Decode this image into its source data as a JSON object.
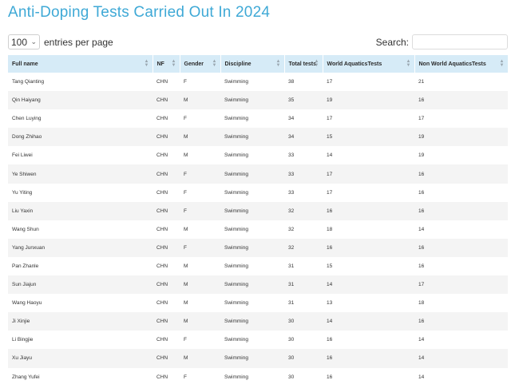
{
  "title": "Anti-Doping Tests Carried Out In 2024",
  "controls": {
    "page_size": "100",
    "page_size_label": "entries per page",
    "search_label": "Search:",
    "search_value": ""
  },
  "columns": [
    "Full name",
    "NF",
    "Gender",
    "Discipline",
    "Total tests",
    "World AquaticsTests",
    "Non World AquaticsTests"
  ],
  "rows": [
    [
      "Tang Qianting",
      "CHN",
      "F",
      "Swimming",
      "38",
      "17",
      "21"
    ],
    [
      "Qin Haiyang",
      "CHN",
      "M",
      "Swimming",
      "35",
      "19",
      "16"
    ],
    [
      "Chen Luying",
      "CHN",
      "F",
      "Swimming",
      "34",
      "17",
      "17"
    ],
    [
      "Dong Zhihao",
      "CHN",
      "M",
      "Swimming",
      "34",
      "15",
      "19"
    ],
    [
      "Fei Liwei",
      "CHN",
      "M",
      "Swimming",
      "33",
      "14",
      "19"
    ],
    [
      "Ye Shiwen",
      "CHN",
      "F",
      "Swimming",
      "33",
      "17",
      "16"
    ],
    [
      "Yu Yiting",
      "CHN",
      "F",
      "Swimming",
      "33",
      "17",
      "16"
    ],
    [
      "Liu Yaxin",
      "CHN",
      "F",
      "Swimming",
      "32",
      "16",
      "16"
    ],
    [
      "Wang Shun",
      "CHN",
      "M",
      "Swimming",
      "32",
      "18",
      "14"
    ],
    [
      "Yang Junxuan",
      "CHN",
      "F",
      "Swimming",
      "32",
      "16",
      "16"
    ],
    [
      "Pan Zhanle",
      "CHN",
      "M",
      "Swimming",
      "31",
      "15",
      "16"
    ],
    [
      "Sun Jiajun",
      "CHN",
      "M",
      "Swimming",
      "31",
      "14",
      "17"
    ],
    [
      "Wang Haoyu",
      "CHN",
      "M",
      "Swimming",
      "31",
      "13",
      "18"
    ],
    [
      "Ji Xinjie",
      "CHN",
      "M",
      "Swimming",
      "30",
      "14",
      "16"
    ],
    [
      "Li Bingjie",
      "CHN",
      "F",
      "Swimming",
      "30",
      "16",
      "14"
    ],
    [
      "Xu Jiayu",
      "CHN",
      "M",
      "Swimming",
      "30",
      "16",
      "14"
    ],
    [
      "Zhang Yufei",
      "CHN",
      "F",
      "Swimming",
      "30",
      "16",
      "14"
    ]
  ]
}
